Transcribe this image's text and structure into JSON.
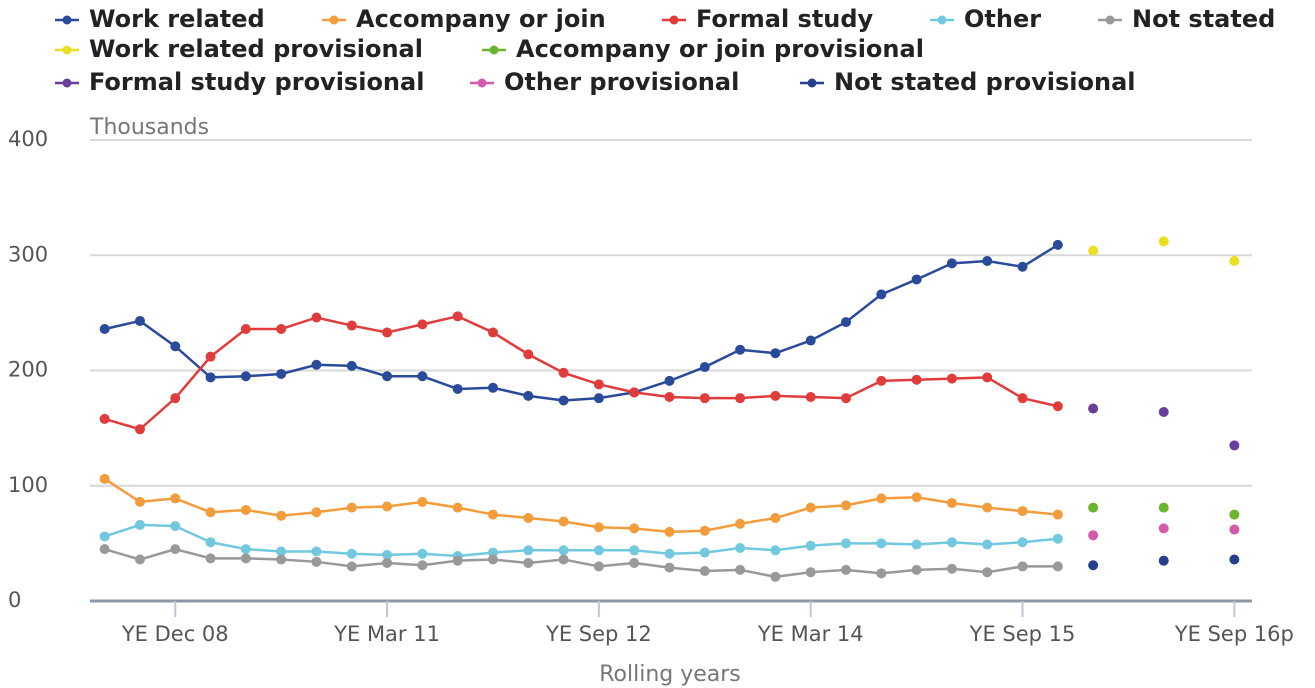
{
  "chart_data": {
    "type": "line",
    "ylabel": "Thousands",
    "xlabel": "Rolling years",
    "categories": [
      null,
      null,
      "YE Dec 08",
      null,
      null,
      null,
      null,
      null,
      "YE Mar 11",
      null,
      null,
      null,
      null,
      null,
      "YE Sep 12",
      null,
      null,
      null,
      null,
      null,
      "YE Mar 14",
      null,
      null,
      null,
      null,
      null,
      "YE Sep 15",
      null,
      null,
      null,
      null,
      null,
      "YE Sep 16p"
    ],
    "ylim": [
      0,
      400
    ],
    "yticks": [
      0,
      100,
      200,
      300,
      400
    ],
    "grid": true,
    "series": [
      {
        "name": "Work related",
        "color": "#2a4a9a",
        "values": [
          236,
          243,
          221,
          194,
          195,
          197,
          205,
          204,
          195,
          195,
          184,
          185,
          178,
          174,
          176,
          181,
          191,
          203,
          218,
          215,
          226,
          242,
          266,
          279,
          293,
          295,
          290,
          309,
          null,
          null,
          null,
          null,
          null
        ]
      },
      {
        "name": "Accompany or join",
        "color": "#f39c3c",
        "values": [
          106,
          86,
          89,
          77,
          79,
          74,
          77,
          81,
          82,
          86,
          81,
          75,
          72,
          69,
          64,
          63,
          60,
          61,
          67,
          72,
          81,
          83,
          89,
          90,
          85,
          81,
          78,
          75,
          null,
          null,
          null,
          null,
          null
        ]
      },
      {
        "name": "Formal study",
        "color": "#e03c3c",
        "values": [
          158,
          149,
          176,
          212,
          236,
          236,
          246,
          239,
          233,
          240,
          247,
          233,
          214,
          198,
          188,
          181,
          177,
          176,
          176,
          178,
          177,
          176,
          191,
          192,
          193,
          194,
          176,
          169,
          null,
          null,
          null,
          null,
          null
        ]
      },
      {
        "name": "Other",
        "color": "#72c8de",
        "values": [
          56,
          66,
          65,
          51,
          45,
          43,
          43,
          41,
          40,
          41,
          39,
          42,
          44,
          44,
          44,
          44,
          41,
          42,
          46,
          44,
          48,
          50,
          50,
          49,
          51,
          49,
          51,
          54,
          null,
          null,
          null,
          null,
          null
        ]
      },
      {
        "name": "Not stated",
        "color": "#999999",
        "values": [
          45,
          36,
          45,
          37,
          37,
          36,
          34,
          30,
          33,
          31,
          35,
          36,
          33,
          36,
          30,
          33,
          29,
          26,
          27,
          21,
          25,
          27,
          24,
          27,
          28,
          25,
          30,
          30,
          null,
          null,
          null,
          null,
          null
        ]
      },
      {
        "name": "Work related provisional",
        "color": "#e8e020",
        "values": [
          null,
          null,
          null,
          null,
          null,
          null,
          null,
          null,
          null,
          null,
          null,
          null,
          null,
          null,
          null,
          null,
          null,
          null,
          null,
          null,
          null,
          null,
          null,
          null,
          null,
          null,
          null,
          null,
          304,
          null,
          312,
          null,
          295
        ]
      },
      {
        "name": "Accompany or join provisional",
        "color": "#6ab42e",
        "values": [
          null,
          null,
          null,
          null,
          null,
          null,
          null,
          null,
          null,
          null,
          null,
          null,
          null,
          null,
          null,
          null,
          null,
          null,
          null,
          null,
          null,
          null,
          null,
          null,
          null,
          null,
          null,
          null,
          81,
          null,
          81,
          null,
          75
        ]
      },
      {
        "name": "Formal study provisional",
        "color": "#6a3f9a",
        "values": [
          null,
          null,
          null,
          null,
          null,
          null,
          null,
          null,
          null,
          null,
          null,
          null,
          null,
          null,
          null,
          null,
          null,
          null,
          null,
          null,
          null,
          null,
          null,
          null,
          null,
          null,
          null,
          null,
          167,
          null,
          164,
          null,
          135
        ]
      },
      {
        "name": "Other provisional",
        "color": "#d45aae",
        "values": [
          null,
          null,
          null,
          null,
          null,
          null,
          null,
          null,
          null,
          null,
          null,
          null,
          null,
          null,
          null,
          null,
          null,
          null,
          null,
          null,
          null,
          null,
          null,
          null,
          null,
          null,
          null,
          null,
          57,
          null,
          63,
          null,
          62
        ]
      },
      {
        "name": "Not stated provisional",
        "color": "#243f8e",
        "values": [
          null,
          null,
          null,
          null,
          null,
          null,
          null,
          null,
          null,
          null,
          null,
          null,
          null,
          null,
          null,
          null,
          null,
          null,
          null,
          null,
          null,
          null,
          null,
          null,
          null,
          null,
          null,
          null,
          31,
          null,
          35,
          null,
          36
        ]
      }
    ]
  }
}
